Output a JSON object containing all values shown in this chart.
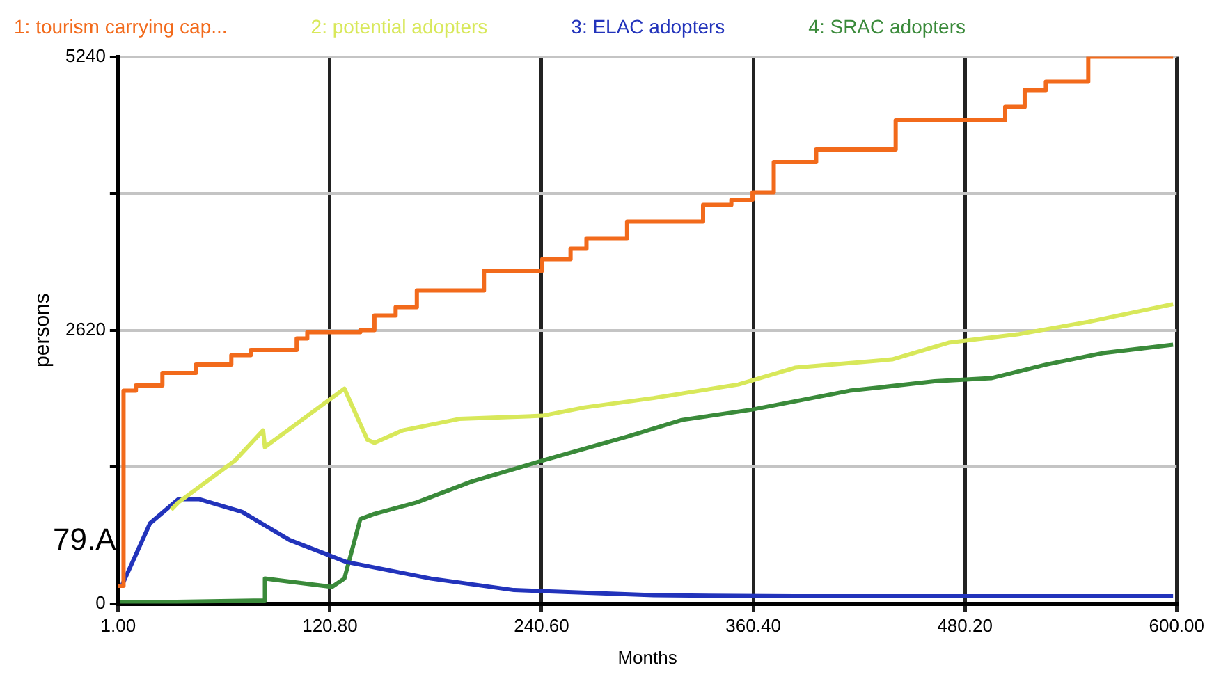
{
  "chart_data": {
    "type": "line",
    "xlabel": "Months",
    "ylabel": "persons",
    "annotations": [
      "79.A"
    ],
    "legend": "top",
    "grid": true,
    "marker": "none",
    "xlim": [
      1,
      600
    ],
    "xticks": [
      {
        "value": 1,
        "label": "1.00"
      },
      {
        "value": 120.8,
        "label": "120.80"
      },
      {
        "value": 240.6,
        "label": "240.60"
      },
      {
        "value": 360.4,
        "label": "360.40"
      },
      {
        "value": 480.2,
        "label": "480.20"
      },
      {
        "value": 600,
        "label": "600.00"
      }
    ],
    "ylim": [
      0,
      5240
    ],
    "yticks": [
      0,
      {
        "value": 1310,
        "label": null
      },
      2620,
      {
        "value": 3930,
        "label": null
      },
      5240
    ],
    "series": [
      {
        "name": "1: tourism carrying cap...",
        "type": "step",
        "color": "#f26a1b",
        "x": [
          1,
          4,
          11,
          26,
          45,
          65,
          76,
          102,
          108,
          138,
          146,
          158,
          170,
          208,
          241,
          257,
          266,
          289,
          332,
          348,
          360,
          372,
          396,
          441,
          503,
          514,
          526,
          550,
          598
        ],
        "values": [
          170,
          2040,
          2090,
          2210,
          2290,
          2380,
          2430,
          2540,
          2600,
          2620,
          2760,
          2840,
          3000,
          3190,
          3300,
          3400,
          3500,
          3660,
          3820,
          3870,
          3940,
          4230,
          4350,
          4630,
          4760,
          4920,
          5000,
          5240,
          5240
        ]
      },
      {
        "name": "2: potential adopters",
        "type": "line",
        "color": "#d8e85a",
        "x": [
          31,
          35,
          51,
          67,
          83,
          84,
          129,
          142,
          146,
          162,
          194,
          241,
          265,
          304,
          352,
          384,
          439,
          471,
          510,
          550,
          598
        ],
        "values": [
          900,
          970,
          1170,
          1370,
          1660,
          1500,
          2060,
          1570,
          1540,
          1660,
          1770,
          1800,
          1880,
          1970,
          2100,
          2260,
          2340,
          2500,
          2580,
          2700,
          2870
        ]
      },
      {
        "name": "3: ELAC adopters",
        "type": "line",
        "color": "#2233bb",
        "x": [
          3,
          19,
          35,
          47,
          71,
          98,
          130,
          178,
          225,
          304,
          384,
          598
        ],
        "values": [
          170,
          770,
          1000,
          1000,
          880,
          610,
          400,
          240,
          130,
          80,
          70,
          70
        ]
      },
      {
        "name": "4: SRAC adopters",
        "type": "line",
        "color": "#3a8a3a",
        "x": [
          2,
          84,
          84,
          98,
          122,
          129,
          138,
          146,
          170,
          201,
          241,
          289,
          320,
          360,
          415,
          463,
          495,
          526,
          558,
          598
        ],
        "values": [
          10,
          30,
          240,
          210,
          160,
          240,
          810,
          860,
          970,
          1170,
          1370,
          1600,
          1760,
          1860,
          2040,
          2130,
          2160,
          2290,
          2400,
          2480
        ]
      }
    ]
  }
}
